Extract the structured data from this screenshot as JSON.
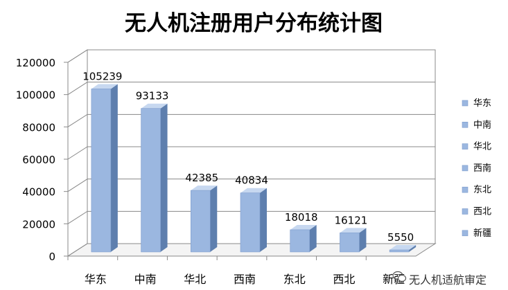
{
  "chart_data": {
    "type": "bar",
    "title": "无人机注册用户分布统计图",
    "categories": [
      "华东",
      "中南",
      "华北",
      "西南",
      "东北",
      "西北",
      "新疆"
    ],
    "series": [
      {
        "values": [
          105239,
          93133,
          42385,
          40834,
          18018,
          16121,
          5550
        ]
      }
    ],
    "legend_labels": [
      "华东",
      "中南",
      "华北",
      "西南",
      "东北",
      "西北",
      "新疆"
    ],
    "ylim": [
      0,
      120000
    ],
    "yticks": [
      0,
      20000,
      40000,
      60000,
      80000,
      100000,
      120000
    ],
    "grid": true,
    "legend_position": "right",
    "bar_color": "#9bb7e0",
    "bar_side_color": "#5e7fae",
    "bar_top_color": "#c7d8f0"
  },
  "watermark": {
    "text": "无人机适航审定"
  }
}
